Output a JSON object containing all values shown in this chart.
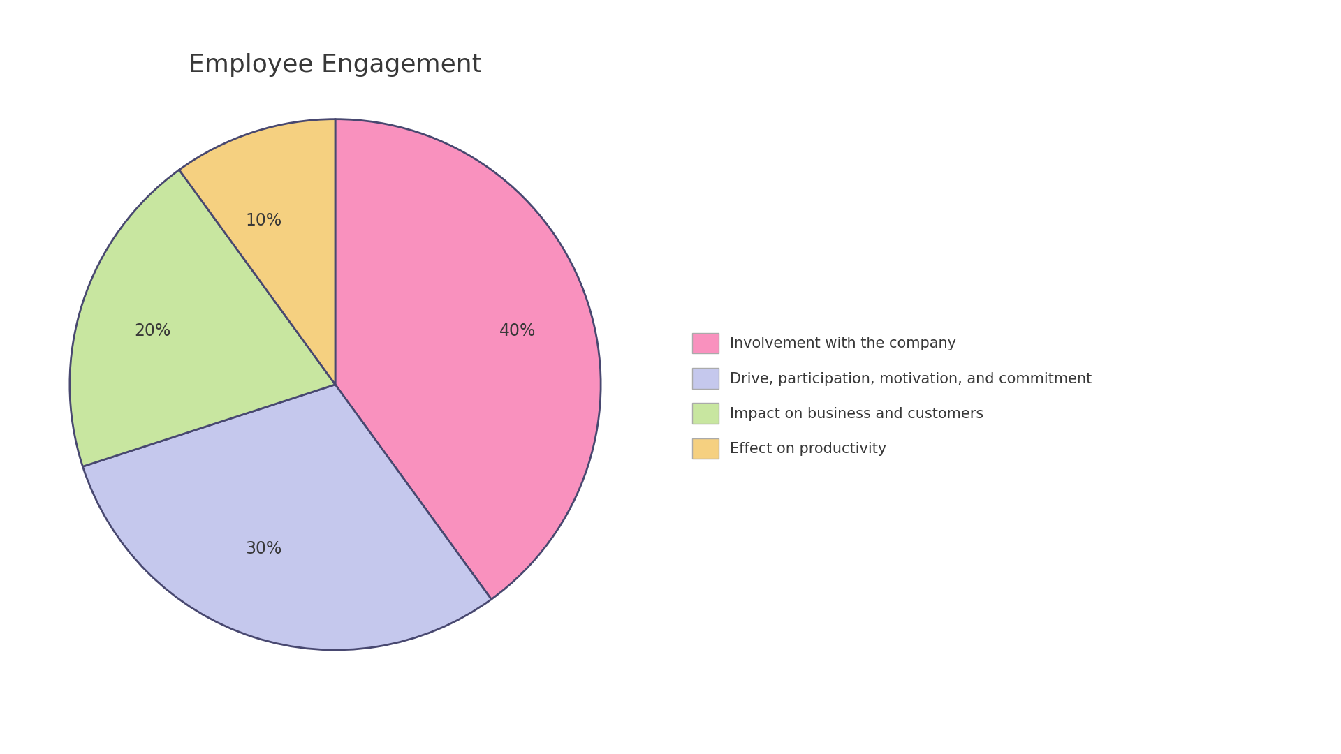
{
  "title": "Employee Engagement",
  "slices": [
    40,
    30,
    20,
    10
  ],
  "labels": [
    "40%",
    "30%",
    "20%",
    "10%"
  ],
  "colors": [
    "#F991BE",
    "#C5C8ED",
    "#C8E6A0",
    "#F5D080"
  ],
  "edge_color": "#484870",
  "edge_width": 2.0,
  "legend_labels": [
    "Involvement with the company",
    "Drive, participation, motivation, and commitment",
    "Impact on business and customers",
    "Effect on productivity"
  ],
  "start_angle": 90,
  "title_fontsize": 26,
  "label_fontsize": 17,
  "legend_fontsize": 15,
  "background_color": "#ffffff",
  "text_color": "#383838"
}
